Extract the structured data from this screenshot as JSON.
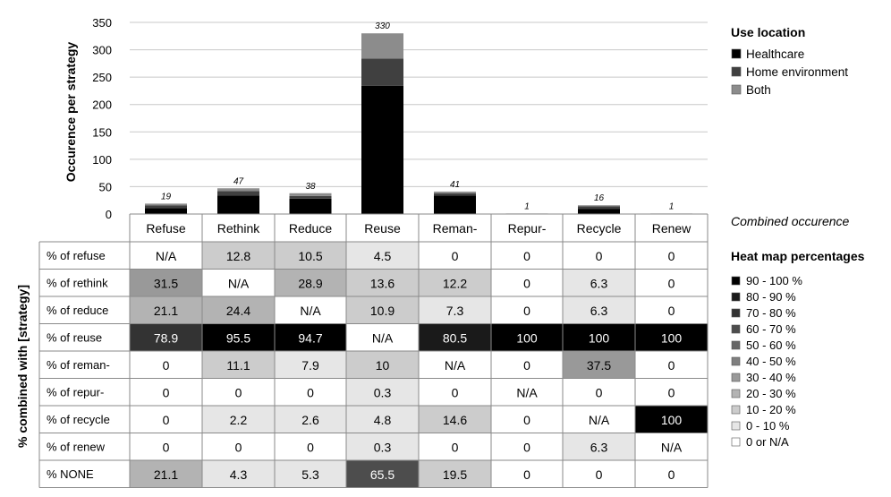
{
  "chart_data": [
    {
      "type": "bar",
      "stacked": true,
      "ylabel": "Occurence per strategy",
      "ylim": [
        0,
        350
      ],
      "yticks": [
        0,
        50,
        100,
        150,
        200,
        250,
        300,
        350
      ],
      "grid": true,
      "categories": [
        "Refuse",
        "Rethink",
        "Reduce",
        "Reuse",
        "Reman-",
        "Repur-",
        "Recycle",
        "Renew"
      ],
      "series": [
        {
          "name": "Healthcare",
          "color": "#000000",
          "values": [
            11,
            34,
            28,
            234,
            34,
            0,
            9,
            0
          ]
        },
        {
          "name": "Home environment",
          "color": "#404040",
          "values": [
            5,
            8,
            5,
            50,
            4,
            0,
            5,
            0
          ]
        },
        {
          "name": "Both",
          "color": "#8c8c8c",
          "values": [
            3,
            5,
            5,
            46,
            3,
            1,
            2,
            1
          ]
        }
      ],
      "totals": [
        19,
        47,
        38,
        330,
        41,
        1,
        16,
        1
      ],
      "legend": {
        "title": "Use location",
        "position": "right"
      }
    },
    {
      "type": "heatmap",
      "row_axis_label": "% combined with [strategy]",
      "side_label": "Combined occurence",
      "columns": [
        "Refuse",
        "Rethink",
        "Reduce",
        "Reuse",
        "Reman-",
        "Repur-",
        "Recycle",
        "Renew"
      ],
      "rows": [
        "% of refuse",
        "% of rethink",
        "% of reduce",
        "% of reuse",
        "% of reman-",
        "% of repur-",
        "% of recycle",
        "% of renew",
        "% NONE"
      ],
      "cells": [
        [
          "N/A",
          "12.8",
          "10.5",
          "4.5",
          "0",
          "0",
          "0",
          "0"
        ],
        [
          "31.5",
          "N/A",
          "28.9",
          "13.6",
          "12.2",
          "0",
          "6.3",
          "0"
        ],
        [
          "21.1",
          "24.4",
          "N/A",
          "10.9",
          "7.3",
          "0",
          "6.3",
          "0"
        ],
        [
          "78.9",
          "95.5",
          "94.7",
          "N/A",
          "80.5",
          "100",
          "100",
          "100"
        ],
        [
          "0",
          "11.1",
          "7.9",
          "10",
          "N/A",
          "0",
          "37.5",
          "0"
        ],
        [
          "0",
          "0",
          "0",
          "0.3",
          "0",
          "N/A",
          "0",
          "0"
        ],
        [
          "0",
          "2.2",
          "2.6",
          "4.8",
          "14.6",
          "0",
          "N/A",
          "100"
        ],
        [
          "0",
          "0",
          "0",
          "0.3",
          "0",
          "0",
          "6.3",
          "N/A"
        ],
        [
          "21.1",
          "4.3",
          "5.3",
          "65.5",
          "19.5",
          "0",
          "0",
          "0"
        ]
      ],
      "legend": {
        "title": "Heat map percentages",
        "bins": [
          {
            "label": "90 - 100 %",
            "color": "#000000"
          },
          {
            "label": "80 - 90 %",
            "color": "#1a1a1a"
          },
          {
            "label": "70 - 80 %",
            "color": "#333333"
          },
          {
            "label": "60 - 70 %",
            "color": "#4d4d4d"
          },
          {
            "label": "50 - 60 %",
            "color": "#666666"
          },
          {
            "label": "40 - 50 %",
            "color": "#7f7f7f"
          },
          {
            "label": "30 - 40 %",
            "color": "#999999"
          },
          {
            "label": "20 - 30 %",
            "color": "#b3b3b3"
          },
          {
            "label": "10 - 20 %",
            "color": "#cccccc"
          },
          {
            "label": "0 - 10 %",
            "color": "#e6e6e6"
          },
          {
            "label": "0 or N/A",
            "color": "#ffffff"
          }
        ]
      }
    }
  ]
}
